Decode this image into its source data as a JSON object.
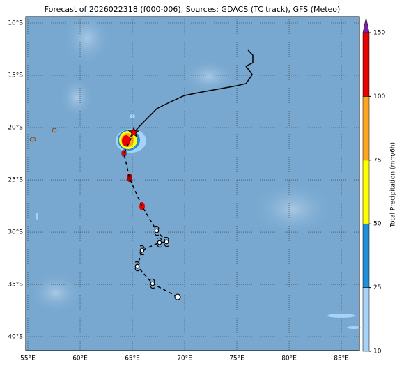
{
  "title": "Forecast of 2026022318 (f000-006), Sources: GDACS (TC track), GFS (Meteo)",
  "map": {
    "lon_range": [
      54.8,
      86.73
    ],
    "lat_range": [
      -9.4,
      -41.33
    ],
    "lon_ticks": [
      {
        "value": 55,
        "label": "55°E"
      },
      {
        "value": 60,
        "label": "60°E"
      },
      {
        "value": 65,
        "label": "65°E"
      },
      {
        "value": 70,
        "label": "70°E"
      },
      {
        "value": 75,
        "label": "75°E"
      },
      {
        "value": 80,
        "label": "80°E"
      },
      {
        "value": 85,
        "label": "85°E"
      }
    ],
    "lat_ticks": [
      {
        "value": -10,
        "label": "10°S"
      },
      {
        "value": -15,
        "label": "15°S"
      },
      {
        "value": -20,
        "label": "20°S"
      },
      {
        "value": -25,
        "label": "25°S"
      },
      {
        "value": -30,
        "label": "30°S"
      },
      {
        "value": -35,
        "label": "35°S"
      },
      {
        "value": -40,
        "label": "40°S"
      }
    ],
    "track_past": {
      "lon": [
        76.07,
        76.53,
        76.53,
        75.87,
        76.47,
        75.87,
        75.0,
        73.47,
        71.67,
        70.0,
        68.67,
        67.33,
        65.87,
        65.13
      ],
      "lat": [
        -12.6,
        -13.07,
        -13.8,
        -14.13,
        -14.93,
        -15.8,
        -16.0,
        -16.27,
        -16.6,
        -16.93,
        -17.53,
        -18.2,
        -19.67,
        -20.47
      ]
    },
    "track_forecast": {
      "lon": [
        65.13,
        64.2,
        64.73,
        65.93,
        67.33,
        68.27,
        67.6,
        65.93,
        65.47,
        66.93,
        69.33
      ],
      "lat": [
        -20.47,
        -22.47,
        -24.87,
        -27.53,
        -29.87,
        -30.93,
        -31.0,
        -31.73,
        -33.27,
        -34.93,
        -36.2
      ]
    }
  },
  "colorbar": {
    "label": "Total Precipitation (mm/6h)",
    "ticks": [
      10,
      25,
      50,
      75,
      100,
      150
    ],
    "colors": [
      "#a6d3f7",
      "#1f8fdc",
      "#ffff00",
      "#ffa51f",
      "#e60000"
    ],
    "extend_color": "#7b1fa2"
  }
}
